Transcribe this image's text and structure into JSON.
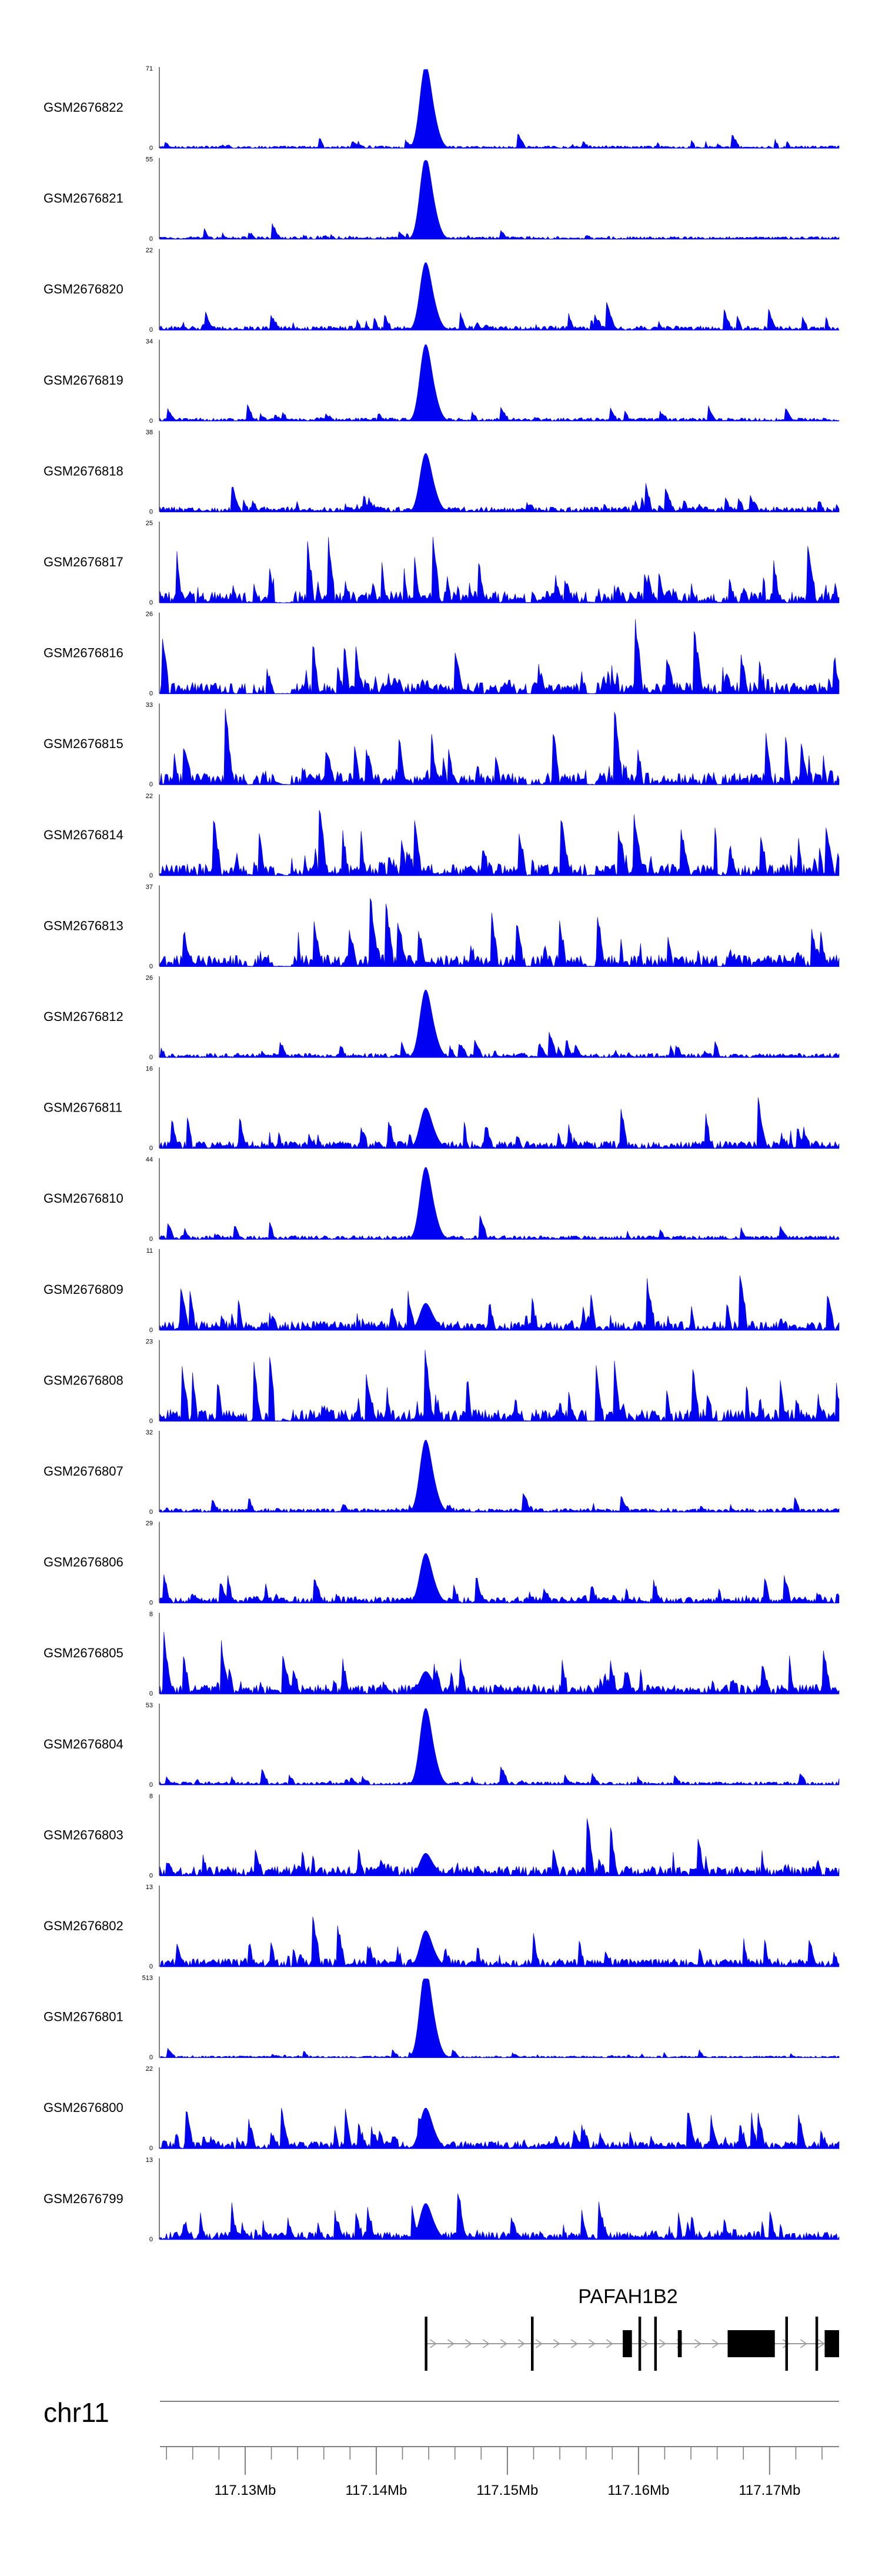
{
  "chart_data": {
    "type": "area",
    "title": "",
    "xlabel": "",
    "ylabel": "",
    "chromosome": "chr11",
    "gene": "PAFAH1B2",
    "x_range_mb": [
      117.1235,
      117.1753
    ],
    "peak_mb": 117.1437,
    "x_tick_labels": [
      "117.13Mb",
      "117.14Mb",
      "117.15Mb",
      "117.16Mb",
      "117.17Mb"
    ],
    "x_tick_values_mb": [
      117.13,
      117.14,
      117.15,
      117.16,
      117.17
    ],
    "minor_tick_step_mb": 0.002,
    "series": [
      {
        "name": "GSM2676822",
        "ymin_label": "0",
        "ymax_label": "71",
        "ymax": 71,
        "sharpness": 0.92
      },
      {
        "name": "GSM2676821",
        "ymin_label": "0",
        "ymax_label": "55",
        "ymax": 55,
        "sharpness": 0.9
      },
      {
        "name": "GSM2676820",
        "ymin_label": "0",
        "ymax_label": "22",
        "ymax": 22,
        "sharpness": 0.75
      },
      {
        "name": "GSM2676819",
        "ymin_label": "0",
        "ymax_label": "34",
        "ymax": 34,
        "sharpness": 0.85
      },
      {
        "name": "GSM2676818",
        "ymin_label": "0",
        "ymax_label": "38",
        "ymax": 38,
        "sharpness": 0.65
      },
      {
        "name": "GSM2676817",
        "ymin_label": "0",
        "ymax_label": "25",
        "ymax": 25,
        "sharpness": 0.05
      },
      {
        "name": "GSM2676816",
        "ymin_label": "0",
        "ymax_label": "26",
        "ymax": 26,
        "sharpness": 0.08
      },
      {
        "name": "GSM2676815",
        "ymin_label": "0",
        "ymax_label": "33",
        "ymax": 33,
        "sharpness": 0.05
      },
      {
        "name": "GSM2676814",
        "ymin_label": "0",
        "ymax_label": "22",
        "ymax": 22,
        "sharpness": 0.05
      },
      {
        "name": "GSM2676813",
        "ymin_label": "0",
        "ymax_label": "37",
        "ymax": 37,
        "sharpness": 0.05
      },
      {
        "name": "GSM2676812",
        "ymin_label": "0",
        "ymax_label": "26",
        "ymax": 26,
        "sharpness": 0.75
      },
      {
        "name": "GSM2676811",
        "ymin_label": "0",
        "ymax_label": "16",
        "ymax": 16,
        "sharpness": 0.45
      },
      {
        "name": "GSM2676810",
        "ymin_label": "0",
        "ymax_label": "44",
        "ymax": 44,
        "sharpness": 0.8
      },
      {
        "name": "GSM2676809",
        "ymin_label": "0",
        "ymax_label": "11",
        "ymax": 11,
        "sharpness": 0.3
      },
      {
        "name": "GSM2676808",
        "ymin_label": "0",
        "ymax_label": "23",
        "ymax": 23,
        "sharpness": 0.05
      },
      {
        "name": "GSM2676807",
        "ymin_label": "0",
        "ymax_label": "32",
        "ymax": 32,
        "sharpness": 0.8
      },
      {
        "name": "GSM2676806",
        "ymin_label": "0",
        "ymax_label": "29",
        "ymax": 29,
        "sharpness": 0.55
      },
      {
        "name": "GSM2676805",
        "ymin_label": "0",
        "ymax_label": "8",
        "ymax": 8,
        "sharpness": 0.25
      },
      {
        "name": "GSM2676804",
        "ymin_label": "0",
        "ymax_label": "53",
        "ymax": 53,
        "sharpness": 0.85
      },
      {
        "name": "GSM2676803",
        "ymin_label": "0",
        "ymax_label": "8",
        "ymax": 8,
        "sharpness": 0.25
      },
      {
        "name": "GSM2676802",
        "ymin_label": "0",
        "ymax_label": "13",
        "ymax": 13,
        "sharpness": 0.4
      },
      {
        "name": "GSM2676801",
        "ymin_label": "0",
        "ymax_label": "513",
        "ymax": 513,
        "sharpness": 0.98
      },
      {
        "name": "GSM2676800",
        "ymin_label": "0",
        "ymax_label": "22",
        "ymax": 22,
        "sharpness": 0.45
      },
      {
        "name": "GSM2676799",
        "ymin_label": "0",
        "ymax_label": "13",
        "ymax": 13,
        "sharpness": 0.4
      }
    ],
    "gene_model": {
      "strand": "+",
      "tx_start_mb": 117.1437,
      "tx_end_mb": 117.1753,
      "exons_mb": [
        [
          117.1437,
          117.1439
        ],
        [
          117.1518,
          117.152
        ],
        [
          117.1588,
          117.1595
        ],
        [
          117.16,
          117.1602
        ],
        [
          117.1612,
          117.1614
        ],
        [
          117.163,
          117.1633
        ],
        [
          117.1668,
          117.1704
        ],
        [
          117.1712,
          117.1714
        ],
        [
          117.1735,
          117.1737
        ],
        [
          117.1742,
          117.1753
        ]
      ]
    }
  },
  "colors": {
    "signal": "#0000f2",
    "axis": "#000000",
    "ruler": "#7f7f7f",
    "exon": "#000000",
    "intron": "#999999"
  }
}
